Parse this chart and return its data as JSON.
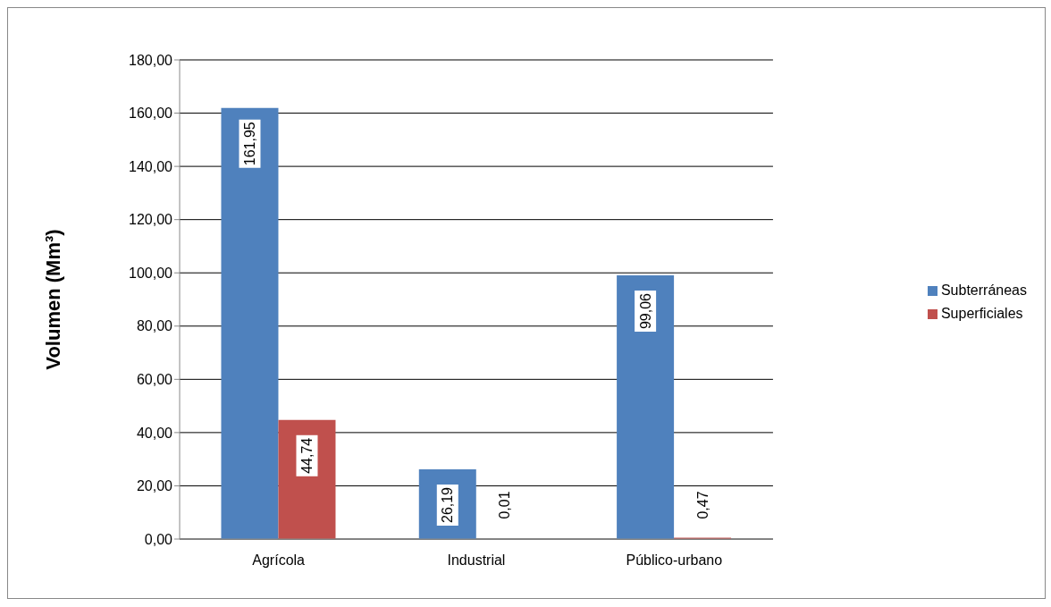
{
  "chart_data": {
    "type": "bar",
    "ylabel": "Volumen (Mm³)",
    "categories": [
      "Agrícola",
      "Industrial",
      "Público-urbano"
    ],
    "series": [
      {
        "name": "Subterráneas",
        "color": "#4f81bd",
        "values": [
          161.95,
          26.19,
          99.06
        ],
        "value_labels": [
          "161,95",
          "26,19",
          "99,06"
        ]
      },
      {
        "name": "Superficiales",
        "color": "#c0504d",
        "values": [
          44.74,
          0.01,
          0.47
        ],
        "value_labels": [
          "44,74",
          "0,01",
          "0,47"
        ]
      }
    ],
    "ylim": [
      0,
      180
    ],
    "yticks": [
      {
        "value": 0,
        "label": "0,00"
      },
      {
        "value": 20,
        "label": "20,00"
      },
      {
        "value": 40,
        "label": "40,00"
      },
      {
        "value": 60,
        "label": "60,00"
      },
      {
        "value": 80,
        "label": "80,00"
      },
      {
        "value": 100,
        "label": "100,00"
      },
      {
        "value": 120,
        "label": "120,00"
      },
      {
        "value": 140,
        "label": "140,00"
      },
      {
        "value": 160,
        "label": "160,00"
      },
      {
        "value": 180,
        "label": "180,00"
      }
    ],
    "grid": "y",
    "legend": "right"
  }
}
